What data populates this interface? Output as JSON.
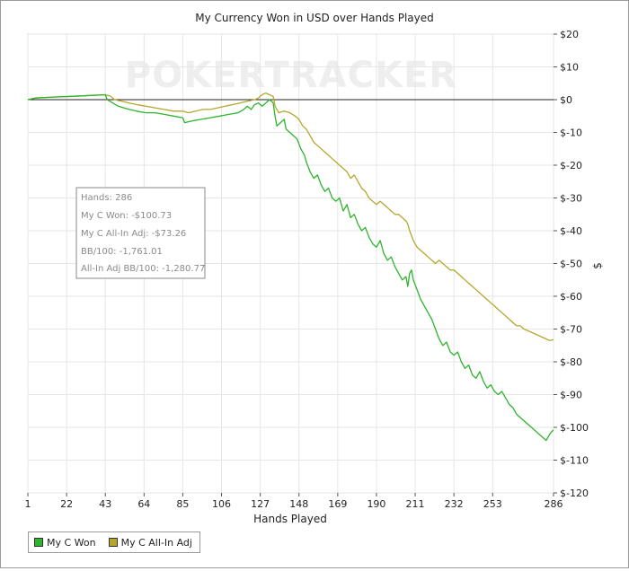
{
  "chart_data": {
    "type": "line",
    "title": "My Currency Won in USD over Hands Played",
    "xlabel": "Hands Played",
    "ylabel": "$",
    "watermark": "POKERTRACKER",
    "xlim": [
      1,
      286
    ],
    "ylim": [
      -120,
      20
    ],
    "x_ticks": [
      1,
      22,
      43,
      64,
      85,
      106,
      127,
      148,
      169,
      190,
      211,
      232,
      253,
      286
    ],
    "y_ticks": [
      {
        "value": 20,
        "label": "$20"
      },
      {
        "value": 10,
        "label": "$10"
      },
      {
        "value": 0,
        "label": "$0"
      },
      {
        "value": -10,
        "label": "$-10"
      },
      {
        "value": -20,
        "label": "$-20"
      },
      {
        "value": -30,
        "label": "$-30"
      },
      {
        "value": -40,
        "label": "$-40"
      },
      {
        "value": -50,
        "label": "$-50"
      },
      {
        "value": -60,
        "label": "$-60"
      },
      {
        "value": -70,
        "label": "$-70"
      },
      {
        "value": -80,
        "label": "$-80"
      },
      {
        "value": -90,
        "label": "$-90"
      },
      {
        "value": -100,
        "label": "$-100"
      },
      {
        "value": -110,
        "label": "$-110"
      },
      {
        "value": -120,
        "label": "$-120"
      }
    ],
    "grid": true,
    "legend_position": "bottom-left",
    "series": [
      {
        "name": "My C Won",
        "color": "#2db52d",
        "points": [
          [
            1,
            0
          ],
          [
            5,
            0.5
          ],
          [
            15,
            0.8
          ],
          [
            25,
            1
          ],
          [
            35,
            1.3
          ],
          [
            43,
            1.5
          ],
          [
            44,
            0
          ],
          [
            47,
            -1
          ],
          [
            50,
            -2
          ],
          [
            53,
            -2.5
          ],
          [
            56,
            -3
          ],
          [
            60,
            -3.5
          ],
          [
            65,
            -4
          ],
          [
            70,
            -4
          ],
          [
            75,
            -4.5
          ],
          [
            80,
            -5
          ],
          [
            85,
            -5.5
          ],
          [
            86,
            -7
          ],
          [
            90,
            -6.5
          ],
          [
            95,
            -6
          ],
          [
            100,
            -5.5
          ],
          [
            105,
            -5
          ],
          [
            110,
            -4.5
          ],
          [
            115,
            -4
          ],
          [
            118,
            -3
          ],
          [
            120,
            -2
          ],
          [
            122,
            -3
          ],
          [
            124,
            -1.5
          ],
          [
            126,
            -1
          ],
          [
            128,
            -2
          ],
          [
            130,
            -1
          ],
          [
            132,
            0
          ],
          [
            134,
            -1
          ],
          [
            135,
            -5
          ],
          [
            136,
            -8
          ],
          [
            138,
            -7
          ],
          [
            140,
            -6
          ],
          [
            141,
            -9
          ],
          [
            143,
            -10
          ],
          [
            145,
            -11
          ],
          [
            147,
            -12
          ],
          [
            149,
            -15
          ],
          [
            151,
            -17
          ],
          [
            152,
            -19
          ],
          [
            154,
            -22
          ],
          [
            156,
            -24
          ],
          [
            158,
            -23
          ],
          [
            160,
            -26
          ],
          [
            162,
            -28
          ],
          [
            164,
            -27
          ],
          [
            166,
            -30
          ],
          [
            168,
            -31
          ],
          [
            170,
            -30
          ],
          [
            172,
            -34
          ],
          [
            174,
            -32
          ],
          [
            176,
            -36
          ],
          [
            178,
            -35
          ],
          [
            180,
            -38
          ],
          [
            182,
            -40
          ],
          [
            184,
            -39
          ],
          [
            186,
            -42
          ],
          [
            188,
            -44
          ],
          [
            190,
            -45
          ],
          [
            192,
            -43
          ],
          [
            194,
            -47
          ],
          [
            196,
            -49
          ],
          [
            198,
            -48
          ],
          [
            200,
            -51
          ],
          [
            202,
            -53
          ],
          [
            204,
            -55
          ],
          [
            206,
            -54
          ],
          [
            207,
            -57
          ],
          [
            208,
            -53
          ],
          [
            209,
            -52
          ],
          [
            210,
            -55
          ],
          [
            212,
            -58
          ],
          [
            214,
            -61
          ],
          [
            216,
            -63
          ],
          [
            218,
            -65
          ],
          [
            220,
            -67
          ],
          [
            222,
            -70
          ],
          [
            224,
            -73
          ],
          [
            226,
            -75
          ],
          [
            228,
            -74
          ],
          [
            230,
            -77
          ],
          [
            232,
            -78
          ],
          [
            234,
            -77
          ],
          [
            236,
            -80
          ],
          [
            238,
            -82
          ],
          [
            240,
            -81
          ],
          [
            242,
            -84
          ],
          [
            244,
            -85
          ],
          [
            246,
            -83
          ],
          [
            248,
            -86
          ],
          [
            250,
            -88
          ],
          [
            252,
            -87
          ],
          [
            254,
            -89
          ],
          [
            256,
            -90
          ],
          [
            258,
            -89
          ],
          [
            260,
            -91
          ],
          [
            262,
            -93
          ],
          [
            264,
            -94
          ],
          [
            266,
            -96
          ],
          [
            268,
            -97
          ],
          [
            270,
            -98
          ],
          [
            272,
            -99
          ],
          [
            274,
            -100
          ],
          [
            276,
            -101
          ],
          [
            278,
            -102
          ],
          [
            280,
            -103
          ],
          [
            282,
            -104
          ],
          [
            284,
            -102
          ],
          [
            286,
            -100.73
          ]
        ]
      },
      {
        "name": "My C All-In Adj",
        "color": "#b5a72d",
        "points": [
          [
            1,
            0
          ],
          [
            5,
            0.5
          ],
          [
            15,
            0.8
          ],
          [
            25,
            1
          ],
          [
            35,
            1.3
          ],
          [
            43,
            1.5
          ],
          [
            46,
            1
          ],
          [
            48,
            0
          ],
          [
            52,
            -0.5
          ],
          [
            56,
            -1
          ],
          [
            60,
            -1.5
          ],
          [
            65,
            -2
          ],
          [
            70,
            -2.5
          ],
          [
            75,
            -3
          ],
          [
            80,
            -3.5
          ],
          [
            85,
            -3.5
          ],
          [
            88,
            -4
          ],
          [
            92,
            -3.5
          ],
          [
            96,
            -3
          ],
          [
            100,
            -3
          ],
          [
            104,
            -2.5
          ],
          [
            108,
            -2
          ],
          [
            112,
            -1.5
          ],
          [
            116,
            -1
          ],
          [
            120,
            -0.5
          ],
          [
            124,
            0
          ],
          [
            126,
            0.5
          ],
          [
            128,
            1.5
          ],
          [
            130,
            2
          ],
          [
            132,
            1.5
          ],
          [
            134,
            1
          ],
          [
            135,
            -2
          ],
          [
            137,
            -4
          ],
          [
            140,
            -3.5
          ],
          [
            143,
            -4
          ],
          [
            146,
            -5
          ],
          [
            148,
            -6
          ],
          [
            150,
            -8
          ],
          [
            152,
            -9
          ],
          [
            154,
            -11
          ],
          [
            156,
            -13
          ],
          [
            158,
            -14
          ],
          [
            160,
            -15
          ],
          [
            162,
            -16
          ],
          [
            164,
            -17
          ],
          [
            166,
            -18
          ],
          [
            168,
            -19
          ],
          [
            170,
            -20
          ],
          [
            172,
            -21
          ],
          [
            174,
            -22
          ],
          [
            176,
            -24
          ],
          [
            178,
            -23
          ],
          [
            180,
            -25
          ],
          [
            182,
            -27
          ],
          [
            184,
            -28
          ],
          [
            186,
            -30
          ],
          [
            188,
            -31
          ],
          [
            190,
            -32
          ],
          [
            192,
            -31
          ],
          [
            194,
            -32
          ],
          [
            196,
            -33
          ],
          [
            198,
            -34
          ],
          [
            200,
            -35
          ],
          [
            202,
            -35
          ],
          [
            204,
            -36
          ],
          [
            206,
            -37
          ],
          [
            207,
            -38
          ],
          [
            208,
            -40
          ],
          [
            210,
            -43
          ],
          [
            212,
            -45
          ],
          [
            214,
            -46
          ],
          [
            216,
            -47
          ],
          [
            218,
            -48
          ],
          [
            220,
            -49
          ],
          [
            222,
            -50
          ],
          [
            224,
            -49
          ],
          [
            226,
            -50
          ],
          [
            228,
            -51
          ],
          [
            230,
            -52
          ],
          [
            232,
            -52
          ],
          [
            234,
            -53
          ],
          [
            236,
            -54
          ],
          [
            238,
            -55
          ],
          [
            240,
            -56
          ],
          [
            242,
            -57
          ],
          [
            244,
            -58
          ],
          [
            246,
            -59
          ],
          [
            248,
            -60
          ],
          [
            250,
            -61
          ],
          [
            252,
            -62
          ],
          [
            254,
            -63
          ],
          [
            256,
            -64
          ],
          [
            258,
            -65
          ],
          [
            260,
            -66
          ],
          [
            262,
            -67
          ],
          [
            264,
            -68
          ],
          [
            266,
            -69
          ],
          [
            268,
            -69
          ],
          [
            270,
            -70
          ],
          [
            272,
            -70.5
          ],
          [
            274,
            -71
          ],
          [
            276,
            -71.5
          ],
          [
            278,
            -72
          ],
          [
            280,
            -72.5
          ],
          [
            282,
            -73
          ],
          [
            284,
            -73.5
          ],
          [
            286,
            -73.26
          ]
        ]
      }
    ],
    "tooltip_lines": [
      "Hands: 286",
      "My C Won: -$100.73",
      "My C All-In Adj: -$73.26",
      "BB/100: -1,761.01",
      "All-In Adj BB/100: -1,280.77"
    ]
  }
}
